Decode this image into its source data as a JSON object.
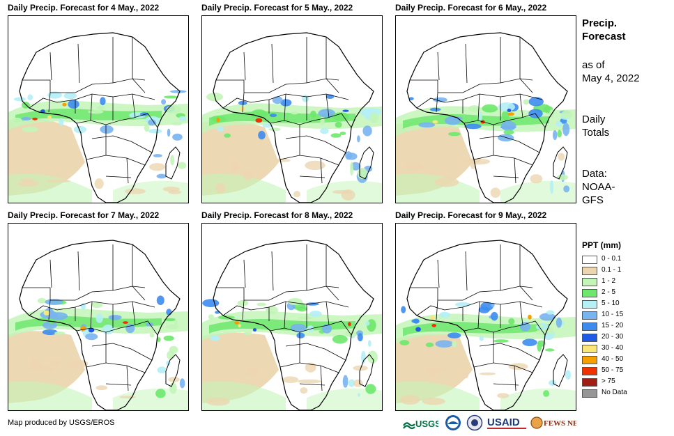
{
  "panels": [
    {
      "title": "Daily Precip. Forecast for 4 May., 2022"
    },
    {
      "title": "Daily Precip. Forecast for 5 May., 2022"
    },
    {
      "title": "Daily Precip. Forecast for 6 May., 2022"
    },
    {
      "title": "Daily Precip. Forecast for 7 May., 2022"
    },
    {
      "title": "Daily Precip. Forecast for 8 May., 2022"
    },
    {
      "title": "Daily Precip. Forecast for 9 May., 2022"
    }
  ],
  "info": {
    "heading_line1": "Precip.",
    "heading_line2": "Forecast",
    "asof_line1": "as of",
    "asof_line2": "May 4, 2022",
    "daily_line1": "Daily",
    "daily_line2": "Totals",
    "data_line1": "Data:",
    "data_line2": "NOAA-",
    "data_line3": "GFS"
  },
  "legend": {
    "title": "PPT (mm)",
    "items": [
      {
        "label": "0 - 0.1",
        "color": "#ffffff"
      },
      {
        "label": "0.1 - 1",
        "color": "#ecd6b0"
      },
      {
        "label": "1 - 2",
        "color": "#c3f5b7"
      },
      {
        "label": "2 - 5",
        "color": "#6de86d"
      },
      {
        "label": "5 - 10",
        "color": "#b4f0f5"
      },
      {
        "label": "10 - 15",
        "color": "#78b4f0"
      },
      {
        "label": "15 - 20",
        "color": "#3c8cf0"
      },
      {
        "label": "20 - 30",
        "color": "#1e5ae6"
      },
      {
        "label": "30 - 40",
        "color": "#fae678"
      },
      {
        "label": "40 - 50",
        "color": "#f5a000"
      },
      {
        "label": "50 - 75",
        "color": "#f03200"
      },
      {
        "label": "> 75",
        "color": "#a01e14"
      },
      {
        "label": "No Data",
        "color": "#969696"
      }
    ]
  },
  "credit": "Map produced by USGS/EROS",
  "logos": {
    "usgs": "USGS",
    "usaid": "USAID",
    "fewsnet": "FEWS NET"
  }
}
